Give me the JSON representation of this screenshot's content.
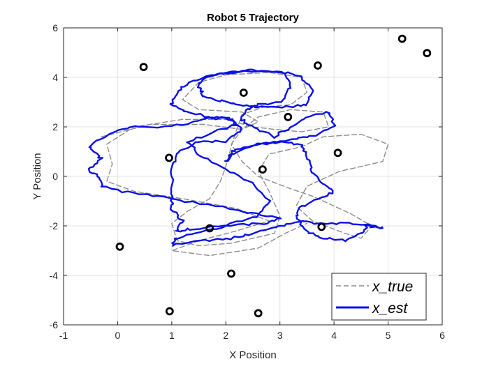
{
  "chart_data": {
    "type": "line",
    "title": "Robot 5 Trajectory",
    "xlabel": "X Position",
    "ylabel": "Y Position",
    "xlim": [
      -1,
      6
    ],
    "ylim": [
      -6,
      6
    ],
    "xticks": [
      "-1",
      "0",
      "1",
      "2",
      "3",
      "4",
      "5",
      "6"
    ],
    "yticks": [
      "-6",
      "-4",
      "-2",
      "0",
      "2",
      "4",
      "6"
    ],
    "grid": true,
    "legend_position": "bottom-right",
    "series": [
      {
        "name": "x_true",
        "style": "dashed",
        "color": "#8c8c8c",
        "points": [
          [
            -0.3,
            1.6
          ],
          [
            0.6,
            2.1
          ],
          [
            1.6,
            2.1
          ],
          [
            2.3,
            1.9
          ],
          [
            2.6,
            2.2
          ],
          [
            2.3,
            2.6
          ],
          [
            1.5,
            2.7
          ],
          [
            1.2,
            3.1
          ],
          [
            1.5,
            3.8
          ],
          [
            2.0,
            4.1
          ],
          [
            2.8,
            4.2
          ],
          [
            3.4,
            4.0
          ],
          [
            3.5,
            3.4
          ],
          [
            3.2,
            2.9
          ],
          [
            2.7,
            2.8
          ],
          [
            2.3,
            2.5
          ],
          [
            2.2,
            1.9
          ],
          [
            2.1,
            1.2
          ],
          [
            2.0,
            0.4
          ],
          [
            1.9,
            -0.2
          ],
          [
            1.7,
            -0.9
          ],
          [
            1.3,
            -1.4
          ],
          [
            1.0,
            -1.9
          ],
          [
            1.1,
            -2.6
          ],
          [
            1.5,
            -2.8
          ],
          [
            2.1,
            -2.7
          ],
          [
            2.5,
            -2.5
          ],
          [
            2.9,
            -2.3
          ],
          [
            3.0,
            -1.6
          ],
          [
            2.8,
            -0.6
          ],
          [
            2.6,
            0.2
          ],
          [
            2.8,
            0.9
          ],
          [
            3.4,
            1.2
          ],
          [
            3.8,
            1.6
          ],
          [
            4.5,
            1.7
          ],
          [
            5.0,
            1.3
          ],
          [
            4.9,
            0.6
          ],
          [
            4.1,
            0.2
          ],
          [
            3.5,
            -0.4
          ],
          [
            3.3,
            -1.2
          ],
          [
            3.6,
            -1.8
          ],
          [
            4.2,
            -2.3
          ],
          [
            4.5,
            -2.5
          ],
          [
            4.7,
            -2.0
          ],
          [
            4.3,
            -1.5
          ],
          [
            3.9,
            -1.1
          ],
          [
            3.6,
            -0.8
          ],
          [
            3.2,
            -0.5
          ],
          [
            2.6,
            0.0
          ],
          [
            2.3,
            0.6
          ],
          [
            2.1,
            1.3
          ],
          [
            2.3,
            1.9
          ],
          [
            2.6,
            2.4
          ],
          [
            3.2,
            2.7
          ],
          [
            3.8,
            2.6
          ],
          [
            3.9,
            2.0
          ],
          [
            3.4,
            1.8
          ],
          [
            2.9,
            1.9
          ],
          [
            2.5,
            2.0
          ],
          [
            2.0,
            2.3
          ],
          [
            1.2,
            2.3
          ],
          [
            0.3,
            2.0
          ],
          [
            -0.2,
            1.3
          ],
          [
            -0.1,
            0.5
          ],
          [
            -0.2,
            -0.2
          ],
          [
            0.3,
            -0.6
          ],
          [
            1.2,
            -0.9
          ],
          [
            2.2,
            -1.3
          ],
          [
            2.8,
            -1.8
          ],
          [
            2.2,
            -2.2
          ],
          [
            1.5,
            -2.6
          ],
          [
            1.0,
            -3.0
          ],
          [
            1.7,
            -3.2
          ],
          [
            2.6,
            -2.9
          ],
          [
            3.1,
            -2.3
          ],
          [
            3.5,
            -1.9
          ]
        ]
      },
      {
        "name": "x_est",
        "style": "solid",
        "color": "#0a10e6",
        "points": [
          [
            -0.5,
            1.2
          ],
          [
            -0.3,
            0.7
          ],
          [
            -0.55,
            0.3
          ],
          [
            -0.35,
            0.0
          ],
          [
            -0.3,
            -0.4
          ],
          [
            0.3,
            -0.7
          ],
          [
            1.0,
            -0.9
          ],
          [
            1.8,
            -1.2
          ],
          [
            2.5,
            -1.5
          ],
          [
            3.0,
            -1.7
          ],
          [
            2.7,
            -1.9
          ],
          [
            2.1,
            -2.0
          ],
          [
            1.4,
            -2.1
          ],
          [
            1.1,
            -2.2
          ],
          [
            1.2,
            -1.8
          ],
          [
            1.0,
            -1.3
          ],
          [
            1.0,
            -0.6
          ],
          [
            1.0,
            0.3
          ],
          [
            1.1,
            1.0
          ],
          [
            1.5,
            1.4
          ],
          [
            2.0,
            1.4
          ],
          [
            2.3,
            1.9
          ],
          [
            2.1,
            2.3
          ],
          [
            1.7,
            2.4
          ],
          [
            1.3,
            2.6
          ],
          [
            1.0,
            2.9
          ],
          [
            1.1,
            3.4
          ],
          [
            1.3,
            3.8
          ],
          [
            1.8,
            4.1
          ],
          [
            2.6,
            4.3
          ],
          [
            3.1,
            4.2
          ],
          [
            3.4,
            4.0
          ],
          [
            3.6,
            3.5
          ],
          [
            3.5,
            2.9
          ],
          [
            3.1,
            2.8
          ],
          [
            2.6,
            2.8
          ],
          [
            2.3,
            2.9
          ],
          [
            2.0,
            3.0
          ],
          [
            1.6,
            3.2
          ],
          [
            1.5,
            3.6
          ],
          [
            1.6,
            4.0
          ],
          [
            2.0,
            4.2
          ],
          [
            2.5,
            4.3
          ],
          [
            3.1,
            4.2
          ],
          [
            3.2,
            3.6
          ],
          [
            3.0,
            3.0
          ],
          [
            2.6,
            2.9
          ],
          [
            2.4,
            2.7
          ],
          [
            2.3,
            2.3
          ],
          [
            2.5,
            2.0
          ],
          [
            2.9,
            1.6
          ],
          [
            3.2,
            2.0
          ],
          [
            3.5,
            2.4
          ],
          [
            3.9,
            2.6
          ],
          [
            4.0,
            2.1
          ],
          [
            3.7,
            1.7
          ],
          [
            3.3,
            1.5
          ],
          [
            2.9,
            1.4
          ],
          [
            2.4,
            1.2
          ],
          [
            2.1,
            1.0
          ],
          [
            2.0,
            0.6
          ],
          [
            2.2,
            1.0
          ],
          [
            2.6,
            1.3
          ],
          [
            3.0,
            1.4
          ],
          [
            3.4,
            1.3
          ],
          [
            3.5,
            0.8
          ],
          [
            3.6,
            0.2
          ],
          [
            3.8,
            -0.3
          ],
          [
            4.0,
            -0.6
          ],
          [
            3.7,
            -0.9
          ],
          [
            3.4,
            -1.2
          ],
          [
            3.3,
            -1.6
          ],
          [
            3.5,
            -2.2
          ],
          [
            3.8,
            -2.5
          ],
          [
            4.2,
            -2.6
          ],
          [
            4.5,
            -2.3
          ],
          [
            4.6,
            -2.0
          ],
          [
            4.9,
            -2.1
          ],
          [
            4.7,
            -2.0
          ],
          [
            4.2,
            -1.9
          ],
          [
            3.7,
            -1.9
          ],
          [
            3.4,
            -1.8
          ],
          [
            3.0,
            -2.0
          ],
          [
            2.5,
            -2.3
          ],
          [
            2.1,
            -2.5
          ],
          [
            1.6,
            -2.6
          ],
          [
            1.0,
            -2.8
          ],
          [
            1.1,
            -2.5
          ],
          [
            1.5,
            -2.3
          ],
          [
            2.0,
            -2.0
          ],
          [
            2.6,
            -1.6
          ],
          [
            2.8,
            -1.0
          ],
          [
            2.5,
            -0.3
          ],
          [
            2.0,
            0.3
          ],
          [
            1.5,
            0.9
          ],
          [
            1.3,
            1.4
          ],
          [
            1.8,
            1.8
          ],
          [
            2.2,
            2.1
          ],
          [
            2.0,
            2.4
          ],
          [
            1.6,
            2.3
          ],
          [
            1.0,
            2.0
          ],
          [
            0.3,
            2.0
          ],
          [
            -0.1,
            1.8
          ],
          [
            -0.5,
            1.2
          ]
        ]
      }
    ],
    "landmarks": [
      [
        0.48,
        4.42
      ],
      [
        0.95,
        0.75
      ],
      [
        0.04,
        -2.84
      ],
      [
        0.96,
        -5.45
      ],
      [
        1.7,
        -2.1
      ],
      [
        2.1,
        -3.93
      ],
      [
        2.33,
        3.38
      ],
      [
        2.68,
        0.28
      ],
      [
        2.6,
        -5.53
      ],
      [
        3.15,
        2.4
      ],
      [
        3.7,
        4.48
      ],
      [
        3.77,
        -2.04
      ],
      [
        4.07,
        0.95
      ],
      [
        5.26,
        5.56
      ],
      [
        5.72,
        4.98
      ]
    ],
    "legend": [
      {
        "label": "x_true",
        "style": "dashed",
        "color": "#8c8c8c"
      },
      {
        "label": "x_est",
        "style": "solid",
        "color": "#0a10e6"
      }
    ]
  }
}
